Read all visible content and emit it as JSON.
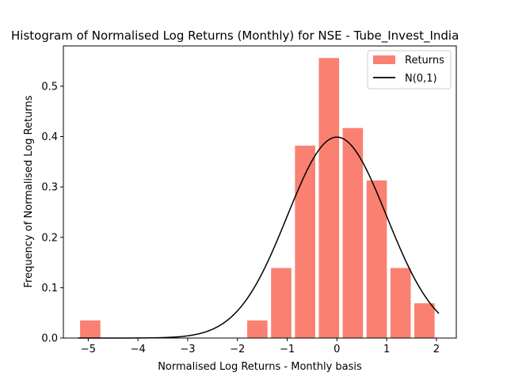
{
  "chart_data": {
    "type": "bar",
    "title": "Histogram of Normalised Log Returns (Monthly) for NSE - Tube_Invest_India",
    "xlabel": "Normalised Log Returns - Monthly basis",
    "ylabel": "Frequency of Normalised Log Returns",
    "xlim": [
      -5.5,
      2.4
    ],
    "ylim": [
      0,
      0.58
    ],
    "xticks": [
      -5,
      -4,
      -3,
      -2,
      -1,
      0,
      1,
      2
    ],
    "xtick_labels": [
      "−5",
      "−4",
      "−3",
      "−2",
      "−1",
      "0",
      "1",
      "2"
    ],
    "yticks": [
      0.0,
      0.1,
      0.2,
      0.3,
      0.4,
      0.5
    ],
    "ytick_labels": [
      "0.0",
      "0.1",
      "0.2",
      "0.3",
      "0.4",
      "0.5"
    ],
    "bar_series": {
      "name": "Returns",
      "color": "#fa8072",
      "bin_edges": [
        -5.2,
        -4.72,
        -4.24,
        -3.76,
        -3.28,
        -2.8,
        -2.32,
        -1.84,
        -1.36,
        -0.88,
        -0.4,
        0.08,
        0.56,
        1.04,
        1.52,
        2.0
      ],
      "values": [
        0.035,
        0,
        0,
        0,
        0,
        0,
        0,
        0.035,
        0.139,
        0.382,
        0.556,
        0.417,
        0.313,
        0.139,
        0.069
      ]
    },
    "line_series": {
      "name": "N(0,1)",
      "color": "#000000",
      "function": "standard normal pdf",
      "x_range": [
        -5.2,
        2.05
      ]
    },
    "legend": {
      "position": "top-right",
      "entries": [
        "Returns",
        "N(0,1)"
      ]
    }
  }
}
